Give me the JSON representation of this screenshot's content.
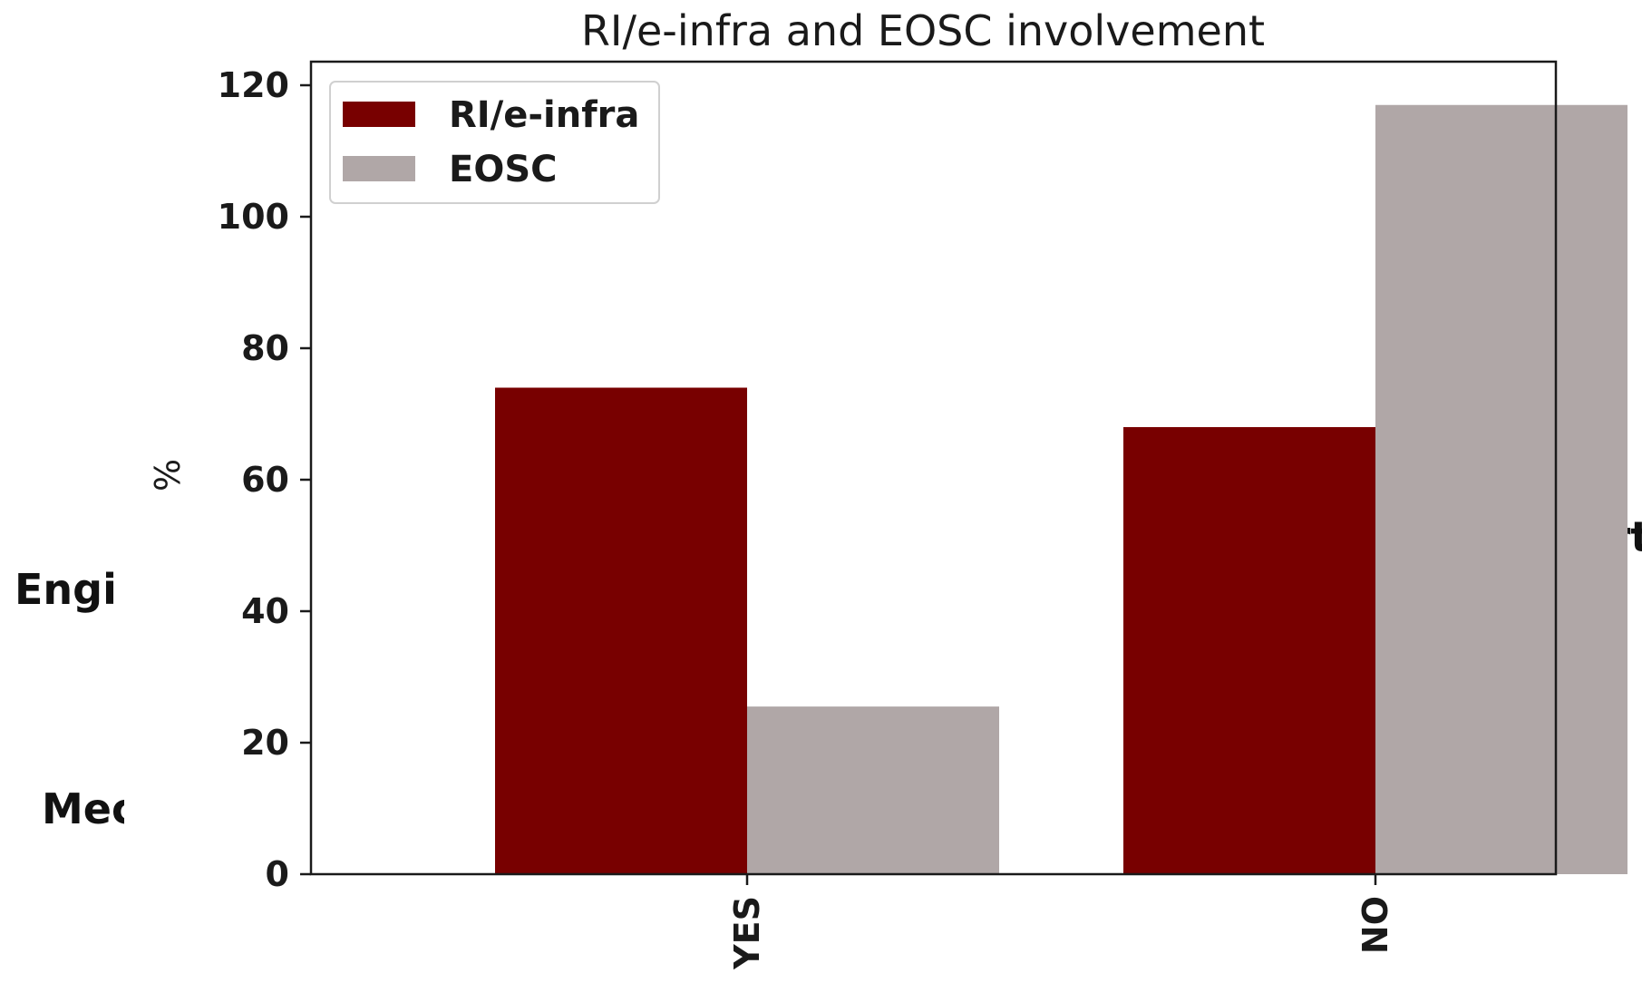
{
  "chart_data": {
    "type": "bar",
    "title": "RI/e-infra and EOSC involvement",
    "xlabel": "",
    "ylabel": "%",
    "categories": [
      "YES",
      "NO"
    ],
    "series": [
      {
        "name": "RI/e-infra",
        "color": "#780000",
        "values": [
          74,
          68
        ]
      },
      {
        "name": "EOSC",
        "color": "#b0a7a7",
        "values": [
          25.5,
          117
        ]
      }
    ],
    "ylim": [
      0,
      122
    ],
    "yticks": [
      0,
      20,
      40,
      60,
      80,
      100,
      120
    ],
    "legend_position": "top-left",
    "grid": false
  },
  "background_text": {
    "left_1": "Engi",
    "left_2": "Mec",
    "right_1": "Art"
  }
}
